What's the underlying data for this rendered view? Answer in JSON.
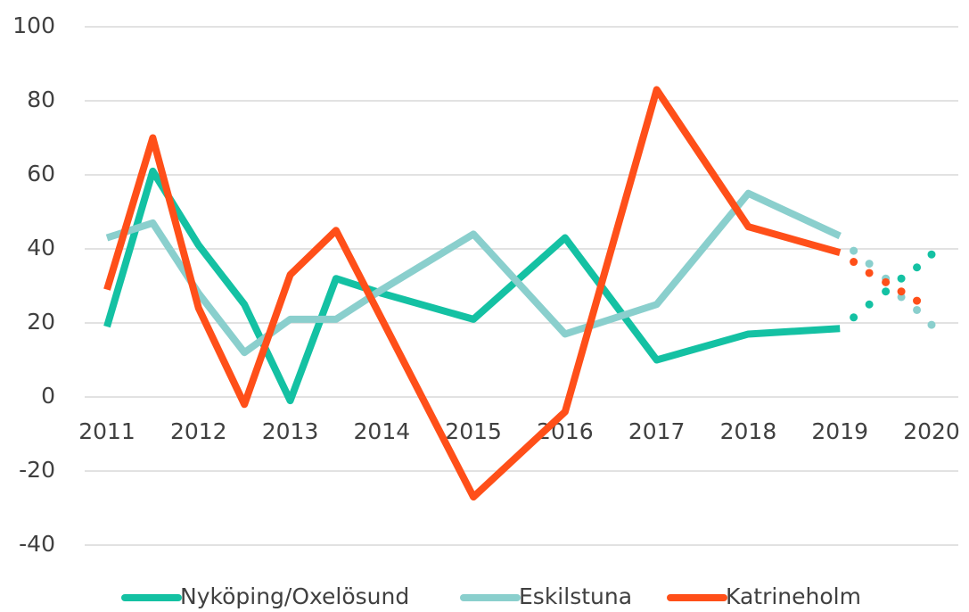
{
  "chart_data": {
    "type": "line",
    "x": [
      2011,
      2011.5,
      2012,
      2012.5,
      2013,
      2013.5,
      2014,
      2015,
      2016,
      2017,
      2018,
      2019
    ],
    "forecast_x": [
      2019.15,
      2019.32,
      2019.5,
      2019.67,
      2019.84,
      2020
    ],
    "series": [
      {
        "name": "Nyköping/Oxelösund",
        "color": "#14c1a3",
        "values": [
          19,
          61,
          41,
          25,
          -1,
          32,
          28,
          21,
          43,
          10,
          17,
          18.5
        ],
        "forecast_values": [
          21.5,
          25,
          28.5,
          32,
          35,
          38.5
        ]
      },
      {
        "name": "Eskilstuna",
        "color": "#8acfcd",
        "values": [
          43,
          47,
          28,
          12,
          21,
          21,
          29,
          44,
          17,
          25,
          55,
          43.5
        ],
        "forecast_values": [
          39.5,
          36,
          32,
          27,
          23.5,
          19.5
        ]
      },
      {
        "name": "Katrineholm",
        "color": "#ff4f19",
        "values": [
          29,
          70,
          24,
          -2,
          33,
          45,
          21,
          -27,
          -4,
          83,
          46,
          39
        ],
        "forecast_values": [
          36.5,
          33.5,
          31,
          28.5,
          26,
          null
        ]
      }
    ],
    "xlim": [
      2011,
      2020
    ],
    "xticks": [
      2011,
      2012,
      2013,
      2014,
      2015,
      2016,
      2017,
      2018,
      2019,
      2020
    ],
    "ylim": [
      -40,
      100
    ],
    "yticks": [
      -40,
      -20,
      0,
      20,
      40,
      60,
      80,
      100
    ],
    "grid": true,
    "legend": "bottom"
  }
}
